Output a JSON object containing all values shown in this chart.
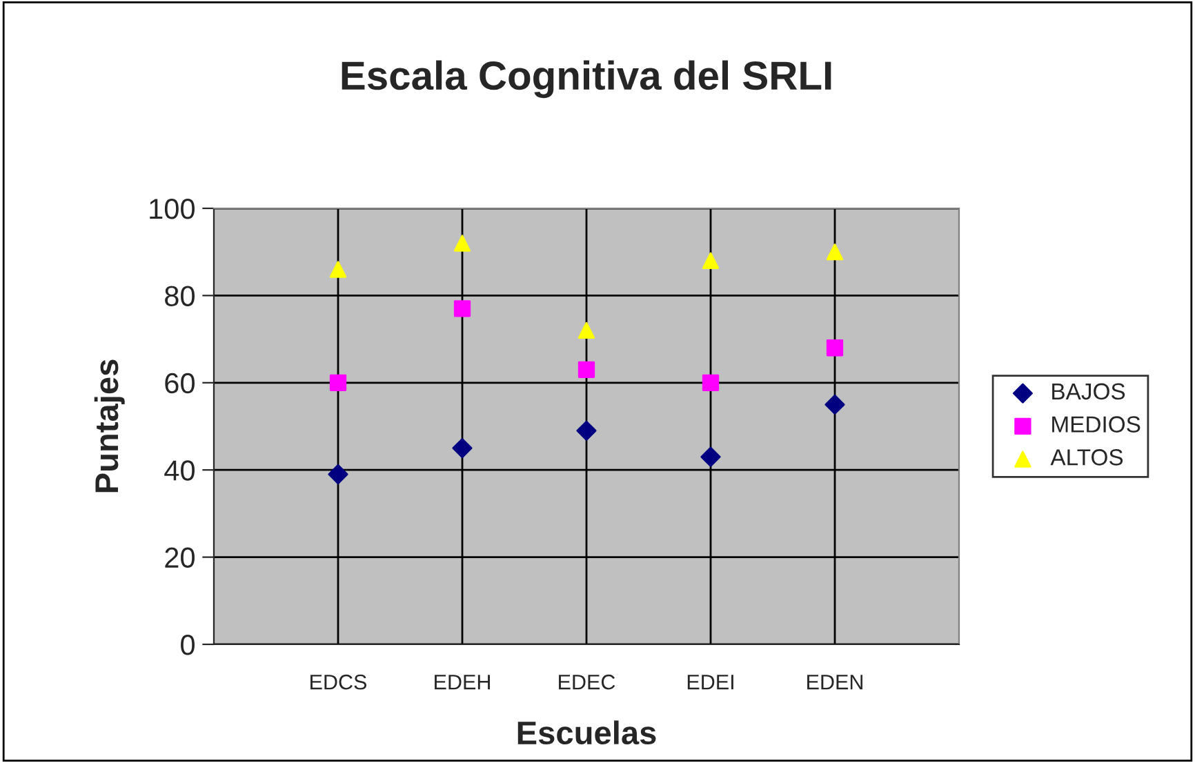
{
  "chart_data": {
    "type": "scatter",
    "title": "Escala Cognitiva del SRLI",
    "xlabel": "Escuelas",
    "ylabel": "Puntajes",
    "categories": [
      "EDCS",
      "EDEH",
      "EDEC",
      "EDEI",
      "EDEN"
    ],
    "series": [
      {
        "name": "BAJOS",
        "color": "#000080",
        "marker": "diamond",
        "values": [
          39,
          45,
          49,
          43,
          55
        ]
      },
      {
        "name": "MEDIOS",
        "color": "#ff00ff",
        "marker": "square",
        "values": [
          60,
          77,
          63,
          60,
          68
        ]
      },
      {
        "name": "ALTOS",
        "color": "#ffff00",
        "marker": "triangle",
        "values": [
          86,
          92,
          72,
          88,
          90
        ]
      }
    ],
    "ylim": [
      0,
      100
    ],
    "yticks": [
      0,
      20,
      40,
      60,
      80,
      100
    ],
    "grid": true,
    "legend": "right"
  }
}
